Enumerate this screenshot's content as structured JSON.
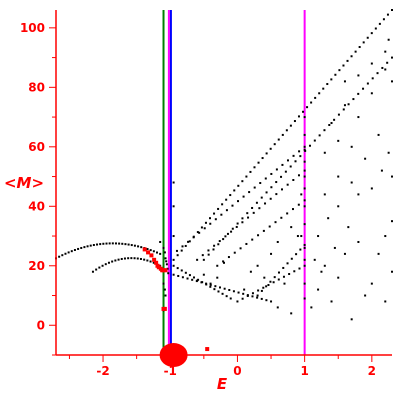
{
  "chart_data": {
    "type": "scatter",
    "title": "",
    "xlabel": "E",
    "ylabel": "<M>",
    "xlim": [
      -2.7,
      2.3
    ],
    "ylim": [
      -10,
      106
    ],
    "x_ticks": [
      -2,
      -1,
      0,
      1,
      2
    ],
    "x_tick_labels": [
      "-2",
      "-1",
      "0",
      "1",
      "2"
    ],
    "y_ticks": [
      0,
      20,
      40,
      60,
      80,
      100
    ],
    "y_tick_labels": [
      "0",
      "20",
      "40",
      "60",
      "80",
      "100"
    ],
    "colors": {
      "axis": "#ff0000",
      "points": "#000000",
      "highlight": "#ff0000",
      "line_green": "#008000",
      "line_blue": "#0000ff",
      "line_magenta": "#ff00ff"
    },
    "vertical_lines": [
      {
        "x": -1.1,
        "color": "#008000"
      },
      {
        "x": -1.02,
        "color": "#ff00ff"
      },
      {
        "x": -0.99,
        "color": "#0000ff"
      },
      {
        "x": 1.0,
        "color": "#ff00ff"
      }
    ],
    "series": [
      {
        "style": "black-dots",
        "curves": [
          {
            "kind": "arc",
            "x0": -2.7,
            "x1": -1.15,
            "ymid": 27.5,
            "y0": 22.5,
            "y1": 24.0,
            "n": 34
          },
          {
            "kind": "arc",
            "x0": -2.15,
            "x1": -1.15,
            "ymid": 22.5,
            "y0": 18.0,
            "y1": 20.0,
            "n": 22
          },
          {
            "kind": "line",
            "x0": -0.95,
            "x1": 2.3,
            "y0": 22.0,
            "y1": 106.0,
            "n": 55
          },
          {
            "kind": "line",
            "x0": -0.5,
            "x1": 2.3,
            "y0": 22.0,
            "y1": 90.0,
            "n": 40
          },
          {
            "kind": "line",
            "x0": -0.9,
            "x1": 1.0,
            "y0": 25.0,
            "y1": 60.0,
            "n": 24
          },
          {
            "kind": "line",
            "x0": -0.6,
            "x1": 1.0,
            "y0": 22.0,
            "y1": 52.0,
            "n": 20
          },
          {
            "kind": "line",
            "x0": -0.3,
            "x1": 1.0,
            "y0": 20.0,
            "y1": 42.0,
            "n": 16
          },
          {
            "kind": "line",
            "x0": -0.95,
            "x1": -0.1,
            "y0": 20.0,
            "y1": 9.0,
            "n": 15
          },
          {
            "kind": "line",
            "x0": -0.95,
            "x1": 0.5,
            "y0": 17.0,
            "y1": 8.0,
            "n": 22
          },
          {
            "kind": "line",
            "x0": 0.3,
            "x1": 1.0,
            "y0": 10.0,
            "y1": 27.0,
            "n": 12
          },
          {
            "kind": "line",
            "x0": 0.0,
            "x1": 1.0,
            "y0": 8.0,
            "y1": 20.0,
            "n": 14
          },
          {
            "kind": "scatter",
            "points": [
              [
                -1.15,
                28
              ],
              [
                -1.1,
                26
              ],
              [
                -1.08,
                24.5
              ],
              [
                -1.07,
                22.5
              ],
              [
                -1.06,
                21.5
              ],
              [
                -1.05,
                20.5
              ],
              [
                -1.04,
                19
              ],
              [
                -1.03,
                17.5
              ],
              [
                -1.1,
                14
              ],
              [
                -1.08,
                12
              ],
              [
                -1.1,
                5
              ],
              [
                -1.07,
                10
              ],
              [
                -0.95,
                30
              ],
              [
                -0.95,
                40
              ],
              [
                -0.95,
                48
              ],
              [
                -0.6,
                15
              ],
              [
                -0.5,
                17
              ],
              [
                -0.4,
                14
              ],
              [
                -0.3,
                16
              ],
              [
                -0.2,
                21
              ],
              [
                0.1,
                12
              ],
              [
                0.2,
                18
              ],
              [
                0.3,
                20
              ],
              [
                0.4,
                16
              ],
              [
                0.5,
                24
              ],
              [
                0.6,
                28
              ],
              [
                0.7,
                14
              ],
              [
                0.8,
                33
              ],
              [
                0.9,
                30
              ],
              [
                0.6,
                6
              ],
              [
                0.8,
                4
              ],
              [
                0.95,
                44
              ],
              [
                0.95,
                30
              ],
              [
                1.0,
                70
              ],
              [
                1.0,
                64
              ],
              [
                1.0,
                59
              ],
              [
                1.0,
                55
              ],
              [
                1.0,
                50
              ],
              [
                1.0,
                46
              ],
              [
                1.0,
                40
              ],
              [
                1.0,
                34
              ],
              [
                1.0,
                26
              ],
              [
                1.0,
                22
              ],
              [
                1.0,
                14
              ],
              [
                1.0,
                9
              ],
              [
                1.1,
                6
              ],
              [
                1.2,
                12
              ],
              [
                1.3,
                20
              ],
              [
                1.4,
                8
              ],
              [
                1.5,
                16
              ],
              [
                1.6,
                24
              ],
              [
                1.7,
                2
              ],
              [
                1.8,
                28
              ],
              [
                1.9,
                10
              ],
              [
                2.0,
                14
              ],
              [
                2.1,
                24
              ],
              [
                2.2,
                8
              ],
              [
                2.3,
                18
              ],
              [
                1.2,
                30
              ],
              [
                1.35,
                36
              ],
              [
                1.5,
                40
              ],
              [
                1.65,
                33
              ],
              [
                1.8,
                44
              ],
              [
                2.0,
                46
              ],
              [
                2.15,
                52
              ],
              [
                2.3,
                50
              ],
              [
                1.3,
                58
              ],
              [
                1.5,
                62
              ],
              [
                1.7,
                48
              ],
              [
                1.9,
                56
              ],
              [
                2.1,
                64
              ],
              [
                2.25,
                58
              ],
              [
                1.4,
                68
              ],
              [
                1.6,
                74
              ],
              [
                1.8,
                70
              ],
              [
                2.0,
                78
              ],
              [
                2.2,
                86
              ],
              [
                2.3,
                82
              ],
              [
                1.6,
                82
              ],
              [
                1.8,
                84
              ],
              [
                2.0,
                88
              ],
              [
                2.2,
                92
              ],
              [
                2.25,
                96
              ],
              [
                1.3,
                44
              ],
              [
                1.5,
                50
              ],
              [
                1.7,
                60
              ],
              [
                2.2,
                30
              ],
              [
                2.3,
                35
              ],
              [
                1.15,
                22
              ],
              [
                1.25,
                18
              ],
              [
                1.45,
                26
              ]
            ]
          }
        ]
      },
      {
        "style": "red-dots",
        "points": [
          [
            -1.38,
            25.5
          ],
          [
            -1.33,
            24.5
          ],
          [
            -1.28,
            23.5
          ],
          [
            -1.24,
            22
          ],
          [
            -1.21,
            21
          ],
          [
            -1.19,
            20
          ],
          [
            -1.17,
            19.5
          ],
          [
            -1.14,
            19
          ],
          [
            -1.12,
            18.5
          ],
          [
            -1.1,
            18.5
          ],
          [
            -1.07,
            18.5
          ],
          [
            -1.1,
            5.5
          ],
          [
            -1.08,
            5.5
          ],
          [
            -0.45,
            -8
          ]
        ]
      },
      {
        "style": "red-blob",
        "points": [
          [
            -0.95,
            -9.0
          ]
        ]
      }
    ]
  }
}
